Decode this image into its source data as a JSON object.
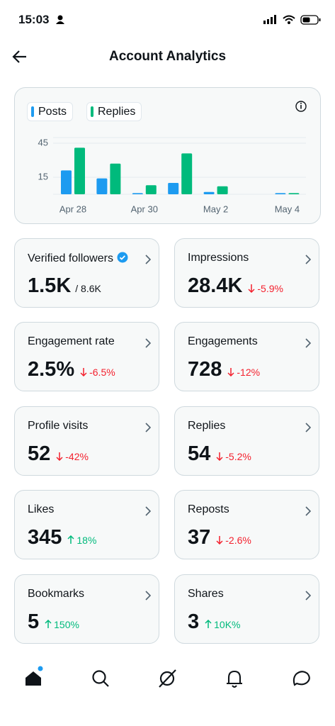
{
  "status_bar": {
    "time": "15:03"
  },
  "header": {
    "title": "Account Analytics"
  },
  "chart": {
    "type": "bar",
    "categories": [
      "Apr 28",
      null,
      "Apr 30",
      null,
      "May 2",
      null,
      "May 4"
    ],
    "series": [
      {
        "name": "Posts",
        "color": "#1d9bf0",
        "values": [
          21,
          14,
          1,
          10,
          2,
          0,
          1
        ]
      },
      {
        "name": "Replies",
        "color": "#00ba7c",
        "values": [
          41,
          27,
          8,
          36,
          7,
          0,
          1
        ]
      }
    ],
    "ylim": [
      0,
      50
    ],
    "yticks": [
      15,
      45
    ],
    "grid": true
  },
  "cards": [
    {
      "label": "Verified followers",
      "value": "1.5K",
      "total": "/ 8.6K",
      "verified": true
    },
    {
      "label": "Impressions",
      "value": "28.4K",
      "change": "-5.9%",
      "trend": "down"
    },
    {
      "label": "Engagement rate",
      "value": "2.5%",
      "change": "-6.5%",
      "trend": "down"
    },
    {
      "label": "Engagements",
      "value": "728",
      "change": "-12%",
      "trend": "down"
    },
    {
      "label": "Profile visits",
      "value": "52",
      "change": "-42%",
      "trend": "down"
    },
    {
      "label": "Replies",
      "value": "54",
      "change": "-5.2%",
      "trend": "down"
    },
    {
      "label": "Likes",
      "value": "345",
      "change": "18%",
      "trend": "up"
    },
    {
      "label": "Reposts",
      "value": "37",
      "change": "-2.6%",
      "trend": "down"
    },
    {
      "label": "Bookmarks",
      "value": "5",
      "change": "150%",
      "trend": "up"
    },
    {
      "label": "Shares",
      "value": "3",
      "change": "10K%",
      "trend": "up"
    }
  ]
}
